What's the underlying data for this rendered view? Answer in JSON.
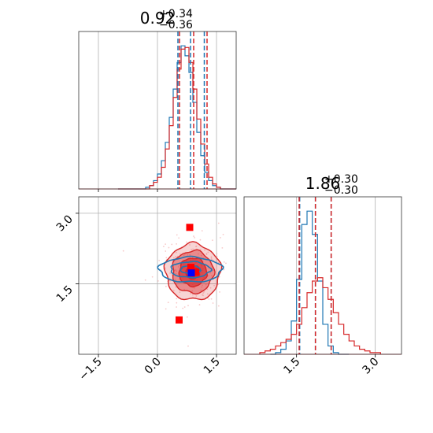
{
  "colors": {
    "blue": "#1f77b4",
    "red": "#d62728",
    "grid": "#b0b0b0"
  },
  "chart_data": [
    {
      "type": "histogram",
      "panel": "top-left",
      "title": {
        "value": "0.92",
        "plus": "+0.34",
        "minus": "−0.36"
      },
      "xlim": [
        -2.0,
        2.0
      ],
      "grid": true,
      "series": [
        {
          "color": "blue",
          "bins": [
            -1.0,
            -0.9,
            -0.8,
            -0.7,
            -0.6,
            -0.5,
            -0.4,
            -0.3,
            -0.2,
            -0.1,
            0.0,
            0.1,
            0.2,
            0.3,
            0.4,
            0.5,
            0.6,
            0.7,
            0.8,
            0.9,
            1.0,
            1.1,
            1.2,
            1.3,
            1.4,
            1.5,
            1.6,
            1.7,
            1.8,
            1.9,
            2.0
          ],
          "counts": [
            0,
            0,
            0,
            0,
            0,
            0,
            0,
            0.01,
            0.02,
            0.05,
            0.09,
            0.17,
            0.28,
            0.43,
            0.6,
            0.76,
            0.86,
            0.8,
            0.7,
            0.52,
            0.34,
            0.2,
            0.1,
            0.05,
            0.02,
            0.01,
            0,
            0,
            0,
            0
          ],
          "quantiles": [
            0.52,
            0.84,
            1.19
          ]
        },
        {
          "color": "red",
          "bins": [
            -1.0,
            -0.9,
            -0.8,
            -0.7,
            -0.6,
            -0.5,
            -0.4,
            -0.3,
            -0.2,
            -0.1,
            0.0,
            0.1,
            0.2,
            0.3,
            0.4,
            0.5,
            0.6,
            0.7,
            0.8,
            0.9,
            1.0,
            1.1,
            1.2,
            1.3,
            1.4,
            1.5,
            1.6,
            1.7,
            1.8,
            1.9,
            2.0
          ],
          "counts": [
            0,
            0,
            0,
            0,
            0,
            0,
            0,
            0,
            0.02,
            0.04,
            0.07,
            0.13,
            0.24,
            0.38,
            0.55,
            0.72,
            0.84,
            0.85,
            0.76,
            0.6,
            0.42,
            0.27,
            0.15,
            0.07,
            0.03,
            0.01,
            0,
            0,
            0,
            0
          ],
          "quantiles": [
            0.56,
            0.92,
            1.26
          ]
        }
      ]
    },
    {
      "type": "histogram",
      "panel": "bottom-right",
      "title": {
        "value": "1.86",
        "plus": "+0.30",
        "minus": "−0.30"
      },
      "xlim": [
        0.5,
        3.5
      ],
      "xticks": [
        1.5,
        3.0
      ],
      "xtick_labels": [
        "1.5",
        "3.0"
      ],
      "grid": true,
      "series": [
        {
          "color": "blue",
          "bins": [
            1.0,
            1.1,
            1.2,
            1.3,
            1.4,
            1.5,
            1.6,
            1.7,
            1.8,
            1.9,
            2.0,
            2.1,
            2.2,
            2.3,
            2.4,
            2.5
          ],
          "counts": [
            0,
            0.01,
            0.03,
            0.08,
            0.2,
            0.45,
            0.78,
            0.86,
            0.72,
            0.44,
            0.18,
            0.05,
            0.01,
            0,
            0
          ],
          "quantiles": [
            1.56,
            1.86,
            2.16
          ]
        },
        {
          "color": "red",
          "bins": [
            0.8,
            0.9,
            1.0,
            1.1,
            1.2,
            1.3,
            1.4,
            1.5,
            1.6,
            1.7,
            1.8,
            1.9,
            2.0,
            2.1,
            2.2,
            2.3,
            2.4,
            2.5,
            2.6,
            2.7,
            2.8,
            2.9,
            3.0,
            3.1
          ],
          "counts": [
            0.01,
            0.02,
            0.03,
            0.05,
            0.07,
            0.09,
            0.12,
            0.18,
            0.28,
            0.37,
            0.44,
            0.46,
            0.4,
            0.33,
            0.25,
            0.18,
            0.12,
            0.08,
            0.05,
            0.03,
            0.02,
            0.01,
            0.01
          ],
          "quantiles": [
            1.55,
            1.86,
            2.16
          ]
        }
      ]
    },
    {
      "type": "contour",
      "panel": "bottom-left",
      "xlim": [
        -2.0,
        2.0
      ],
      "ylim": [
        0.0,
        3.35
      ],
      "xticks": [
        -1.5,
        0.0,
        1.5
      ],
      "xtick_labels": [
        "−1.5",
        "0.0",
        "1.5"
      ],
      "yticks": [
        1.5,
        3.0
      ],
      "ytick_labels": [
        "1.5",
        "3.0"
      ],
      "grid": true,
      "series": [
        {
          "color": "red",
          "center": [
            0.9,
            1.75
          ],
          "sigma": [
            0.35,
            0.3
          ],
          "filled": true,
          "levels": [
            0.5,
            1.0,
            1.5,
            2.0
          ]
        },
        {
          "color": "blue",
          "center": [
            0.84,
            1.8
          ],
          "sigma": [
            0.42,
            0.14
          ],
          "filled": false,
          "levels": [
            0.6,
            1.2,
            1.9
          ]
        }
      ],
      "markers": [
        {
          "color": "red",
          "x": 0.82,
          "y": 2.7
        },
        {
          "color": "red",
          "x": 0.85,
          "y": 1.85
        },
        {
          "color": "red",
          "x": 0.55,
          "y": 0.73
        },
        {
          "color": "red",
          "x": 0.97,
          "y": 1.75
        },
        {
          "color": "blue",
          "x": 0.86,
          "y": 1.73
        }
      ]
    }
  ]
}
